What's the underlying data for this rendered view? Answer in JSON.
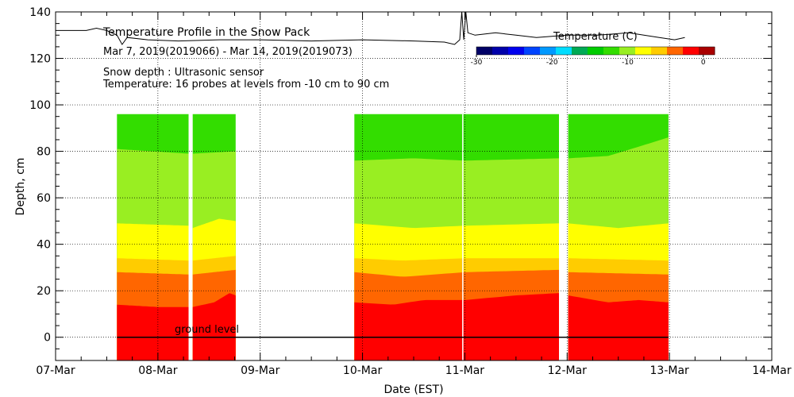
{
  "chart_data": {
    "type": "heatmap",
    "title": "Temperature Profile in the Snow Pack",
    "subtitle": "Mar  7, 2019(2019066) - Mar 14, 2019(2019073)",
    "annotations": [
      "Snow depth : Ultrasonic sensor",
      "Temperature: 16 probes at levels from -10 cm to 90 cm"
    ],
    "ground_label": "ground level",
    "xlabel": "Date (EST)",
    "ylabel": "Depth, cm",
    "x_range_days": [
      0,
      7
    ],
    "x_ticks": [
      "07-Mar",
      "08-Mar",
      "09-Mar",
      "10-Mar",
      "11-Mar",
      "12-Mar",
      "13-Mar",
      "14-Mar"
    ],
    "ylim": [
      -10,
      140
    ],
    "y_ticks": [
      0,
      20,
      40,
      60,
      80,
      100,
      120,
      140
    ],
    "grid": true,
    "colorbar": {
      "title": "Temperature (C)",
      "range": [
        -30,
        1.5
      ],
      "tick_values": [
        -30,
        -20,
        -10,
        0
      ],
      "tick_labels": [
        "-30",
        "-20",
        "-10",
        "0"
      ],
      "colors": [
        "#000066",
        "#0000aa",
        "#0000ee",
        "#0044ff",
        "#0099ff",
        "#00ddff",
        "#00aa55",
        "#00cc00",
        "#33dd00",
        "#99ee22",
        "#ffff00",
        "#ffcc00",
        "#ff6600",
        "#ff0000",
        "#aa0000"
      ]
    },
    "data_segments_days": [
      [
        0.6,
        1.3
      ],
      [
        1.34,
        1.76
      ],
      [
        2.92,
        4.92
      ],
      [
        5.01,
        5.99
      ]
    ],
    "data_gap_line_day": 3.98,
    "layer_boundaries": [
      {
        "name": "red-orange",
        "color": "#ff0000",
        "pts": [
          [
            0.6,
            14
          ],
          [
            1.0,
            13
          ],
          [
            1.3,
            13
          ],
          [
            1.34,
            13
          ],
          [
            1.55,
            15
          ],
          [
            1.7,
            19
          ],
          [
            1.76,
            18
          ],
          [
            2.92,
            15
          ],
          [
            3.3,
            14
          ],
          [
            3.6,
            16
          ],
          [
            4.0,
            16
          ],
          [
            4.5,
            18
          ],
          [
            4.92,
            19
          ],
          [
            5.01,
            18
          ],
          [
            5.4,
            15
          ],
          [
            5.7,
            16
          ],
          [
            5.99,
            15
          ]
        ]
      },
      {
        "name": "orange-amber",
        "color": "#ff6600",
        "pts": [
          [
            0.6,
            28
          ],
          [
            1.3,
            27
          ],
          [
            1.34,
            27
          ],
          [
            1.76,
            29
          ],
          [
            2.92,
            28
          ],
          [
            3.4,
            26
          ],
          [
            4.0,
            28
          ],
          [
            4.92,
            29
          ],
          [
            5.01,
            28
          ],
          [
            5.99,
            27
          ]
        ]
      },
      {
        "name": "amber-yellow",
        "color": "#ffcc00",
        "pts": [
          [
            0.6,
            34
          ],
          [
            1.3,
            33
          ],
          [
            1.34,
            33
          ],
          [
            1.76,
            35
          ],
          [
            2.92,
            34
          ],
          [
            3.4,
            33
          ],
          [
            4.0,
            34
          ],
          [
            4.92,
            34
          ],
          [
            5.01,
            34
          ],
          [
            5.99,
            33
          ]
        ]
      },
      {
        "name": "yellow-lightgreen",
        "color": "#ffff00",
        "pts": [
          [
            0.6,
            49
          ],
          [
            1.3,
            48
          ],
          [
            1.34,
            47
          ],
          [
            1.6,
            51
          ],
          [
            1.76,
            50
          ],
          [
            2.92,
            49
          ],
          [
            3.5,
            47
          ],
          [
            4.0,
            48
          ],
          [
            4.92,
            49
          ],
          [
            5.01,
            49
          ],
          [
            5.5,
            47
          ],
          [
            5.99,
            49
          ]
        ]
      },
      {
        "name": "lightgreen-green",
        "color": "#99ee22",
        "pts": [
          [
            0.6,
            81
          ],
          [
            1.3,
            79
          ],
          [
            1.34,
            79
          ],
          [
            1.76,
            80
          ],
          [
            2.92,
            76
          ],
          [
            3.5,
            77
          ],
          [
            4.0,
            76
          ],
          [
            4.92,
            77
          ],
          [
            5.01,
            77
          ],
          [
            5.4,
            78
          ],
          [
            5.7,
            82
          ],
          [
            5.99,
            86
          ]
        ]
      },
      {
        "name": "green-top",
        "color": "#33dd00",
        "pts": [
          [
            0.6,
            96
          ],
          [
            1.3,
            96
          ],
          [
            1.34,
            96
          ],
          [
            1.76,
            96
          ],
          [
            2.92,
            96
          ],
          [
            4.92,
            96
          ],
          [
            5.01,
            96
          ],
          [
            5.99,
            96
          ]
        ]
      }
    ],
    "temperature_series": {
      "name": "Temperature (C)",
      "pts": [
        [
          0.0,
          132
        ],
        [
          0.3,
          132
        ],
        [
          0.4,
          133
        ],
        [
          0.5,
          132
        ],
        [
          0.6,
          130
        ],
        [
          0.65,
          126
        ],
        [
          0.7,
          129
        ],
        [
          0.9,
          128
        ],
        [
          1.2,
          127.5
        ],
        [
          1.6,
          128
        ],
        [
          2.0,
          128
        ],
        [
          2.5,
          127.5
        ],
        [
          3.0,
          128
        ],
        [
          3.5,
          127.5
        ],
        [
          3.8,
          127
        ],
        [
          3.9,
          126
        ],
        [
          3.95,
          128
        ],
        [
          3.97,
          140
        ],
        [
          3.99,
          128
        ],
        [
          4.01,
          140
        ],
        [
          4.03,
          131
        ],
        [
          4.1,
          130
        ],
        [
          4.3,
          131
        ],
        [
          4.5,
          130
        ],
        [
          4.7,
          129
        ],
        [
          5.0,
          130
        ],
        [
          5.3,
          130
        ],
        [
          5.6,
          131
        ],
        [
          5.9,
          129
        ],
        [
          6.05,
          128
        ],
        [
          6.15,
          129
        ]
      ]
    }
  }
}
